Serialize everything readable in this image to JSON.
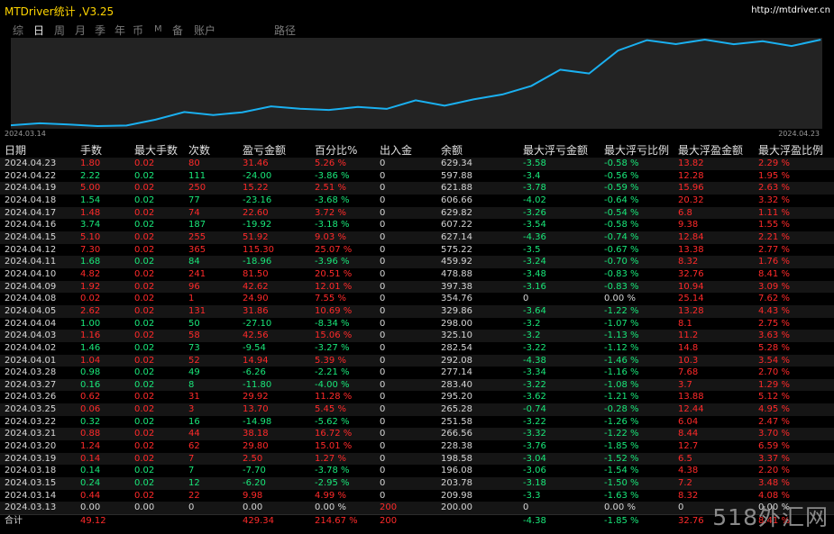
{
  "window": {
    "title": "MTDriver统计 ,V3.25",
    "url": "http://mtdriver.cn"
  },
  "tabs": [
    "综",
    "日",
    "周",
    "月",
    "季",
    "年",
    "币",
    "M",
    "备",
    "账户",
    "路径"
  ],
  "active_tab": "日",
  "chart_data": {
    "type": "line",
    "x": [
      "2024.03.13",
      "2024.03.14",
      "2024.03.15",
      "2024.03.18",
      "2024.03.19",
      "2024.03.20",
      "2024.03.21",
      "2024.03.22",
      "2024.03.25",
      "2024.03.26",
      "2024.03.27",
      "2024.03.28",
      "2024.04.01",
      "2024.04.02",
      "2024.04.03",
      "2024.04.04",
      "2024.04.05",
      "2024.04.08",
      "2024.04.09",
      "2024.04.10",
      "2024.04.11",
      "2024.04.12",
      "2024.04.15",
      "2024.04.16",
      "2024.04.17",
      "2024.04.18",
      "2024.04.19",
      "2024.04.22",
      "2024.04.23"
    ],
    "series": [
      {
        "values": [
          200.0,
          209.98,
          203.78,
          196.08,
          198.58,
          228.38,
          266.56,
          251.58,
          265.28,
          295.2,
          283.4,
          277.14,
          292.08,
          282.54,
          325.1,
          298.0,
          329.86,
          354.76,
          397.38,
          478.88,
          459.92,
          575.22,
          627.14,
          607.22,
          629.82,
          606.66,
          621.88,
          597.88,
          629.34
        ],
        "color": "#1ab0f0"
      }
    ],
    "x_start_label": "2024.03.14",
    "x_end_label": "2024.04.23",
    "grid": false
  },
  "table": {
    "headers": [
      "日期",
      "手数",
      "最大手数",
      "次数",
      "盈亏金额",
      "百分比%",
      "出入金",
      "余额",
      "最大浮亏金额",
      "最大浮亏比例",
      "最大浮盈金额",
      "最大浮盈比例"
    ],
    "rows": [
      [
        "2024.04.23",
        "1.80",
        "0.02",
        "80",
        "31.46",
        "5.26 %",
        "0",
        "629.34",
        "-3.58",
        "-0.58 %",
        "13.82",
        "2.29 %"
      ],
      [
        "2024.04.22",
        "2.22",
        "0.02",
        "111",
        "-24.00",
        "-3.86 %",
        "0",
        "597.88",
        "-3.4",
        "-0.56 %",
        "12.28",
        "1.95 %"
      ],
      [
        "2024.04.19",
        "5.00",
        "0.02",
        "250",
        "15.22",
        "2.51 %",
        "0",
        "621.88",
        "-3.78",
        "-0.59 %",
        "15.96",
        "2.63 %"
      ],
      [
        "2024.04.18",
        "1.54",
        "0.02",
        "77",
        "-23.16",
        "-3.68 %",
        "0",
        "606.66",
        "-4.02",
        "-0.64 %",
        "20.32",
        "3.32 %"
      ],
      [
        "2024.04.17",
        "1.48",
        "0.02",
        "74",
        "22.60",
        "3.72 %",
        "0",
        "629.82",
        "-3.26",
        "-0.54 %",
        "6.8",
        "1.11 %"
      ],
      [
        "2024.04.16",
        "3.74",
        "0.02",
        "187",
        "-19.92",
        "-3.18 %",
        "0",
        "607.22",
        "-3.54",
        "-0.58 %",
        "9.38",
        "1.55 %"
      ],
      [
        "2024.04.15",
        "5.10",
        "0.02",
        "255",
        "51.92",
        "9.03 %",
        "0",
        "627.14",
        "-4.36",
        "-0.74 %",
        "12.84",
        "2.21 %"
      ],
      [
        "2024.04.12",
        "7.30",
        "0.02",
        "365",
        "115.30",
        "25.07 %",
        "0",
        "575.22",
        "-3.5",
        "-0.67 %",
        "13.38",
        "2.77 %"
      ],
      [
        "2024.04.11",
        "1.68",
        "0.02",
        "84",
        "-18.96",
        "-3.96 %",
        "0",
        "459.92",
        "-3.24",
        "-0.70 %",
        "8.32",
        "1.76 %"
      ],
      [
        "2024.04.10",
        "4.82",
        "0.02",
        "241",
        "81.50",
        "20.51 %",
        "0",
        "478.88",
        "-3.48",
        "-0.83 %",
        "32.76",
        "8.41 %"
      ],
      [
        "2024.04.09",
        "1.92",
        "0.02",
        "96",
        "42.62",
        "12.01 %",
        "0",
        "397.38",
        "-3.16",
        "-0.83 %",
        "10.94",
        "3.09 %"
      ],
      [
        "2024.04.08",
        "0.02",
        "0.02",
        "1",
        "24.90",
        "7.55 %",
        "0",
        "354.76",
        "0",
        "0.00 %",
        "25.14",
        "7.62 %"
      ],
      [
        "2024.04.05",
        "2.62",
        "0.02",
        "131",
        "31.86",
        "10.69 %",
        "0",
        "329.86",
        "-3.64",
        "-1.22 %",
        "13.28",
        "4.43 %"
      ],
      [
        "2024.04.04",
        "1.00",
        "0.02",
        "50",
        "-27.10",
        "-8.34 %",
        "0",
        "298.00",
        "-3.2",
        "-1.07 %",
        "8.1",
        "2.75 %"
      ],
      [
        "2024.04.03",
        "1.16",
        "0.02",
        "58",
        "42.56",
        "15.06 %",
        "0",
        "325.10",
        "-3.2",
        "-1.13 %",
        "11.2",
        "3.63 %"
      ],
      [
        "2024.04.02",
        "1.46",
        "0.02",
        "73",
        "-9.54",
        "-3.27 %",
        "0",
        "282.54",
        "-3.22",
        "-1.12 %",
        "14.8",
        "5.28 %"
      ],
      [
        "2024.04.01",
        "1.04",
        "0.02",
        "52",
        "14.94",
        "5.39 %",
        "0",
        "292.08",
        "-4.38",
        "-1.46 %",
        "10.3",
        "3.54 %"
      ],
      [
        "2024.03.28",
        "0.98",
        "0.02",
        "49",
        "-6.26",
        "-2.21 %",
        "0",
        "277.14",
        "-3.34",
        "-1.16 %",
        "7.68",
        "2.70 %"
      ],
      [
        "2024.03.27",
        "0.16",
        "0.02",
        "8",
        "-11.80",
        "-4.00 %",
        "0",
        "283.40",
        "-3.22",
        "-1.08 %",
        "3.7",
        "1.29 %"
      ],
      [
        "2024.03.26",
        "0.62",
        "0.02",
        "31",
        "29.92",
        "11.28 %",
        "0",
        "295.20",
        "-3.62",
        "-1.21 %",
        "13.88",
        "5.12 %"
      ],
      [
        "2024.03.25",
        "0.06",
        "0.02",
        "3",
        "13.70",
        "5.45 %",
        "0",
        "265.28",
        "-0.74",
        "-0.28 %",
        "12.44",
        "4.95 %"
      ],
      [
        "2024.03.22",
        "0.32",
        "0.02",
        "16",
        "-14.98",
        "-5.62 %",
        "0",
        "251.58",
        "-3.22",
        "-1.26 %",
        "6.04",
        "2.47 %"
      ],
      [
        "2024.03.21",
        "0.88",
        "0.02",
        "44",
        "38.18",
        "16.72 %",
        "0",
        "266.56",
        "-3.32",
        "-1.22 %",
        "8.44",
        "3.70 %"
      ],
      [
        "2024.03.20",
        "1.24",
        "0.02",
        "62",
        "29.80",
        "15.01 %",
        "0",
        "228.38",
        "-3.76",
        "-1.85 %",
        "12.7",
        "6.59 %"
      ],
      [
        "2024.03.19",
        "0.14",
        "0.02",
        "7",
        "2.50",
        "1.27 %",
        "0",
        "198.58",
        "-3.04",
        "-1.52 %",
        "6.5",
        "3.37 %"
      ],
      [
        "2024.03.18",
        "0.14",
        "0.02",
        "7",
        "-7.70",
        "-3.78 %",
        "0",
        "196.08",
        "-3.06",
        "-1.54 %",
        "4.38",
        "2.20 %"
      ],
      [
        "2024.03.15",
        "0.24",
        "0.02",
        "12",
        "-6.20",
        "-2.95 %",
        "0",
        "203.78",
        "-3.18",
        "-1.50 %",
        "7.2",
        "3.48 %"
      ],
      [
        "2024.03.14",
        "0.44",
        "0.02",
        "22",
        "9.98",
        "4.99 %",
        "0",
        "209.98",
        "-3.3",
        "-1.63 %",
        "8.32",
        "4.08 %"
      ],
      [
        "2024.03.13",
        "0.00",
        "0.00",
        "0",
        "0.00",
        "0.00 %",
        "200",
        "200.00",
        "0",
        "0.00 %",
        "0",
        "0.00 %"
      ]
    ],
    "total": [
      "合计",
      "49.12",
      "",
      "",
      "429.34",
      "214.67 %",
      "200",
      "",
      "-4.38",
      "-1.85 %",
      "32.76",
      "8.41 %"
    ]
  },
  "colors": {
    "profit": "#ff2a2a",
    "loss": "#19e87a",
    "neutral": "#d6d6d6",
    "title": "#ffd500",
    "line": "#1ab0f0"
  },
  "watermark": "518外汇网"
}
